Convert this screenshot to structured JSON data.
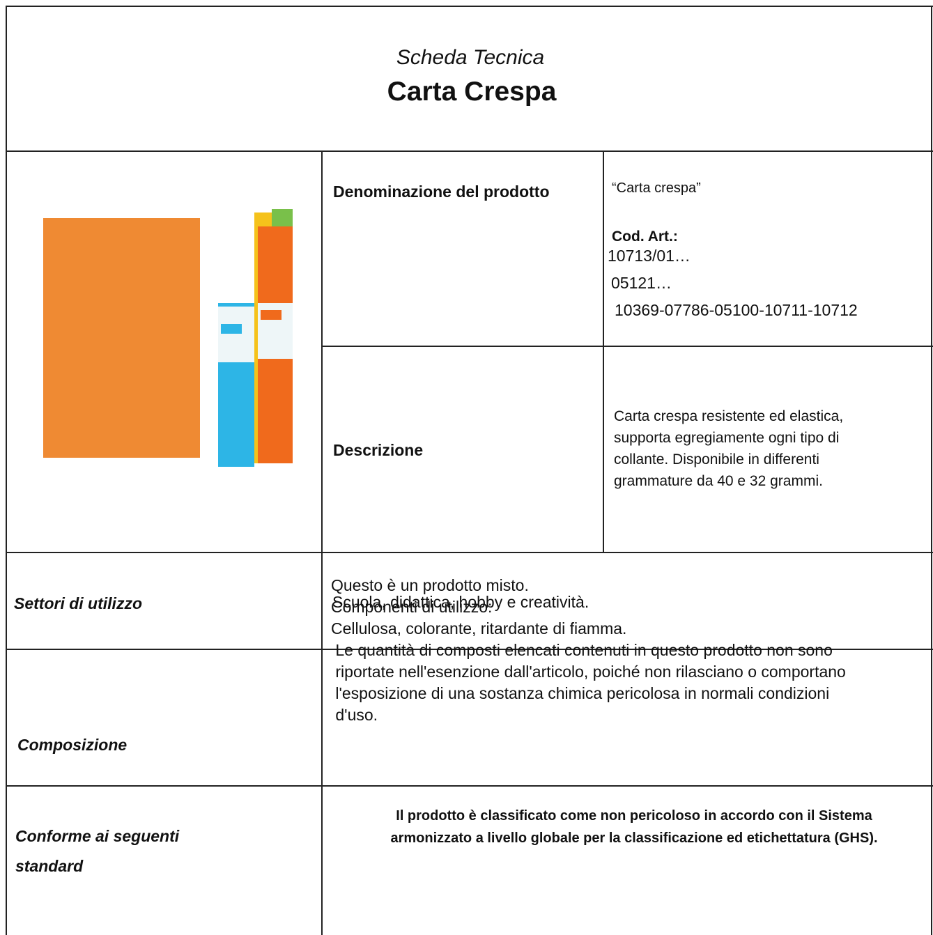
{
  "header": {
    "subtitle": "Scheda Tecnica",
    "title": "Carta Crespa"
  },
  "product": {
    "name_label": "Denominazione del prodotto",
    "name_value": "“Carta crespa”",
    "code_label": "Cod. Art.:",
    "codes": [
      "10713/01…",
      "05121…",
      "10369-07786-05100-10711-10712"
    ],
    "description_label": "Descrizione",
    "description_lines": [
      "Carta crespa resistente ed elastica,",
      "supporta egregiamente ogni tipo di",
      "collante. Disponibile in differenti",
      "grammature da 40 e 32 grammi."
    ]
  },
  "rows": [
    {
      "label": [
        "Settori di utilizzo"
      ],
      "lines": [
        "Scuola, didattica, hobby e creatività."
      ]
    },
    {
      "label": [
        "Composizione"
      ],
      "lines": [
        "Questo è un prodotto misto.",
        "Componenti di utilizzo:",
        "Cellulosa, colorante, ritardante di fiamma.",
        " Le quantità di composti elencati contenuti in questo prodotto non sono",
        " riportate nell'esenzione dall'articolo, poiché non rilasciano o comportano",
        " l'esposizione di una sostanza chimica pericolosa in normali condizioni",
        " d'uso."
      ]
    },
    {
      "label": [
        "Conforme ai seguenti",
        "standard"
      ],
      "lines": [
        "Il prodotto è classificato come non pericoloso in accordo con il Sistema",
        "armonizzato a livello globale per la classificazione ed etichettatura (GHS)."
      ]
    }
  ]
}
